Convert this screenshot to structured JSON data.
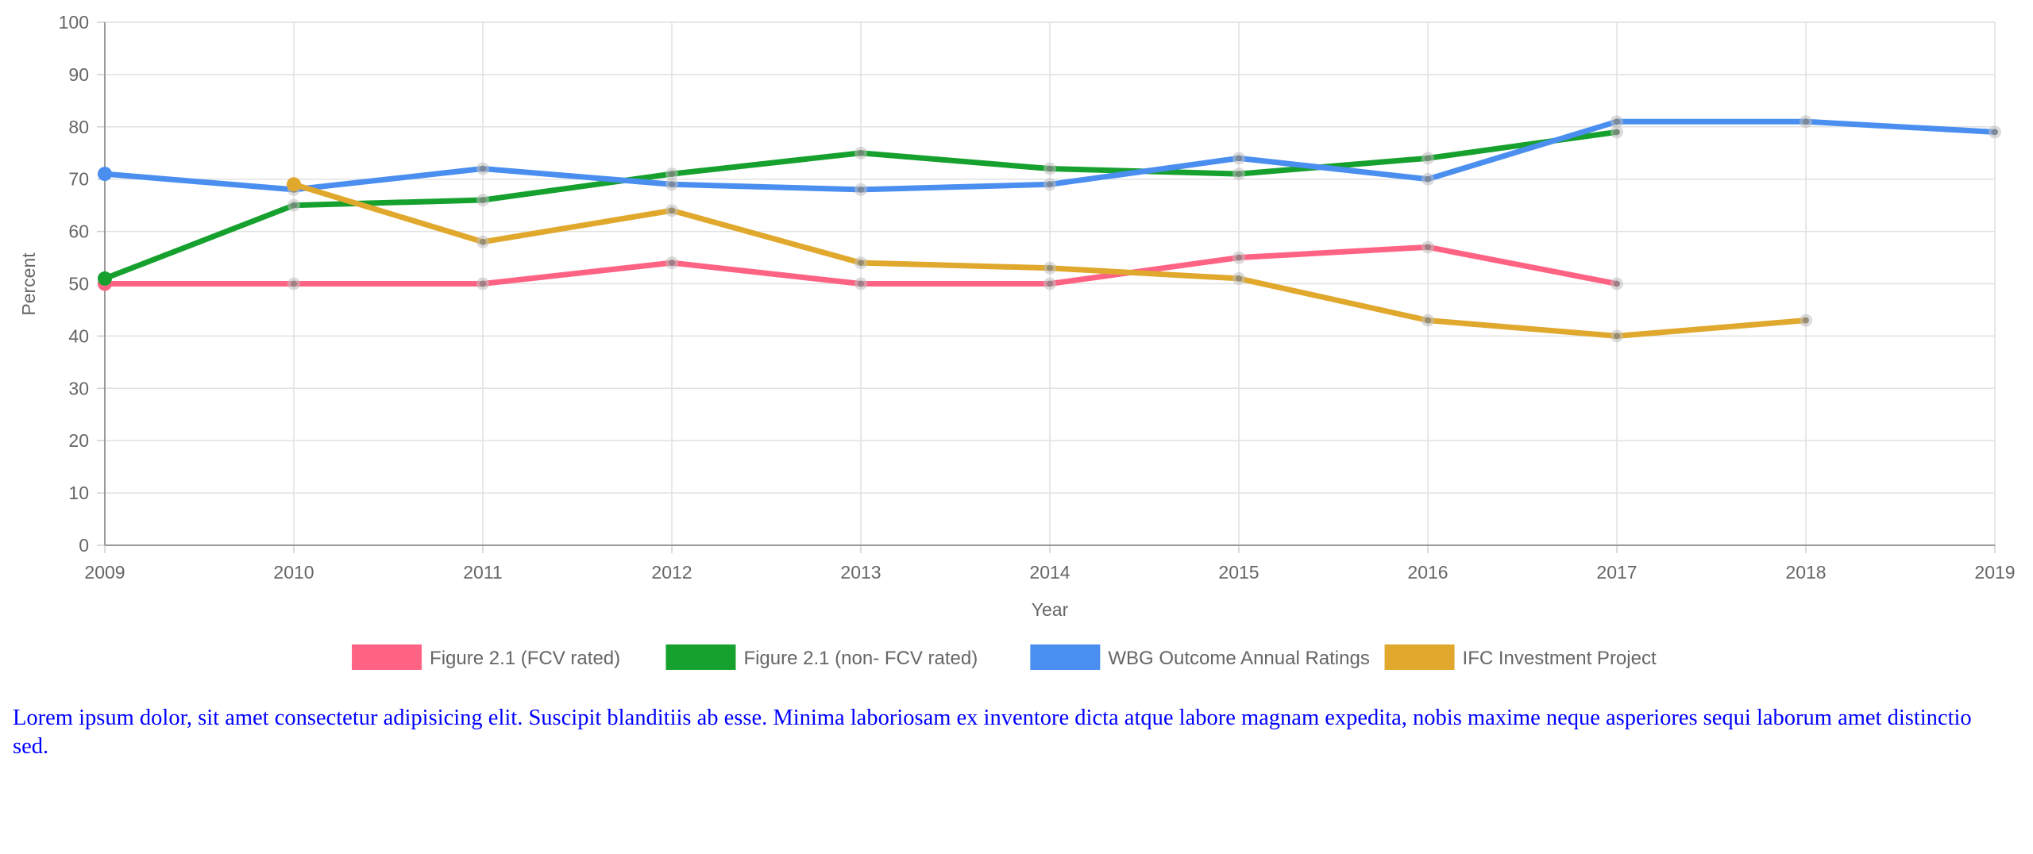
{
  "chart_data": {
    "type": "line",
    "title": "",
    "xlabel": "Year",
    "ylabel": "Percent",
    "x": [
      "2009",
      "2010",
      "2011",
      "2012",
      "2013",
      "2014",
      "2015",
      "2016",
      "2017",
      "2018",
      "2019"
    ],
    "y_ticks": [
      "0",
      "10",
      "20",
      "30",
      "40",
      "50",
      "60",
      "70",
      "80",
      "90",
      "100"
    ],
    "ylim": [
      0,
      100
    ],
    "grid": true,
    "legend_position": "bottom",
    "series": [
      {
        "name": "Figure 2.1 (FCV rated)",
        "color": "#ff6384",
        "values": [
          50,
          50,
          50,
          54,
          50,
          50,
          55,
          57,
          50,
          null,
          null
        ]
      },
      {
        "name": "Figure 2.1 (non- FCV rated)",
        "color": "#16a12e",
        "values": [
          51,
          65,
          66,
          71,
          75,
          72,
          71,
          74,
          79,
          null,
          null
        ]
      },
      {
        "name": "WBG Outcome Annual Ratings",
        "color": "#4a8ef0",
        "values": [
          71,
          68,
          72,
          69,
          68,
          69,
          74,
          70,
          81,
          81,
          79
        ]
      },
      {
        "name": "IFC Investment Project",
        "color": "#e0a82c",
        "values": [
          null,
          69,
          58,
          64,
          54,
          53,
          51,
          43,
          40,
          43,
          null
        ]
      }
    ]
  },
  "caption": "Lorem ipsum dolor, sit amet consectetur adipisicing elit. Suscipit blanditiis ab esse. Minima laboriosam ex inventore dicta atque labore magnam expedita, nobis maxime neque asperiores sequi laborum amet distinctio sed."
}
